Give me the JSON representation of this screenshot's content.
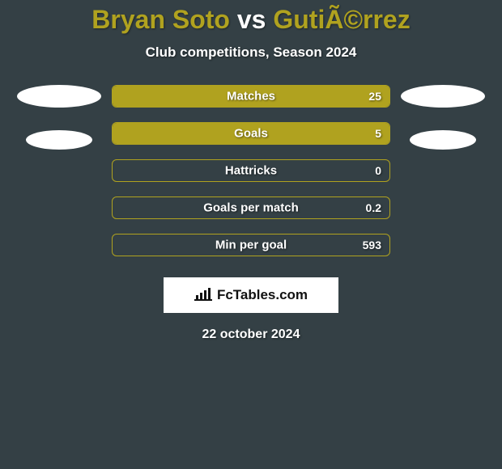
{
  "page": {
    "background_color": "#344045",
    "accent_color": "#b0a21f",
    "text_color": "#ffffff"
  },
  "title": {
    "left_name": "Bryan Soto",
    "vs": " vs ",
    "right_name": "GutiÃ©rrez",
    "left_color": "#b0a21f",
    "vs_color": "#ffffff",
    "right_color": "#b0a21f",
    "fontsize": 32
  },
  "subtitle": {
    "text": "Club competitions, Season 2024",
    "fontsize": 17
  },
  "bars": {
    "border_color": "#b0a21f",
    "fill_color": "#b0a21f",
    "empty_color": "transparent",
    "height": 28,
    "radius": 6,
    "label_fontsize": 15,
    "value_fontsize": 14,
    "items": [
      {
        "label": "Matches",
        "value": "25",
        "fill_pct": 100
      },
      {
        "label": "Goals",
        "value": "5",
        "fill_pct": 100
      },
      {
        "label": "Hattricks",
        "value": "0",
        "fill_pct": 0
      },
      {
        "label": "Goals per match",
        "value": "0.2",
        "fill_pct": 0
      },
      {
        "label": "Min per goal",
        "value": "593",
        "fill_pct": 0
      }
    ]
  },
  "side_blobs": {
    "color": "#ffffff",
    "left_count": 2,
    "right_count": 2
  },
  "brand": {
    "text": "FcTables.com",
    "background": "#ffffff",
    "text_color": "#111111",
    "icon_color": "#111111"
  },
  "date": {
    "text": "22 october 2024",
    "fontsize": 16
  }
}
